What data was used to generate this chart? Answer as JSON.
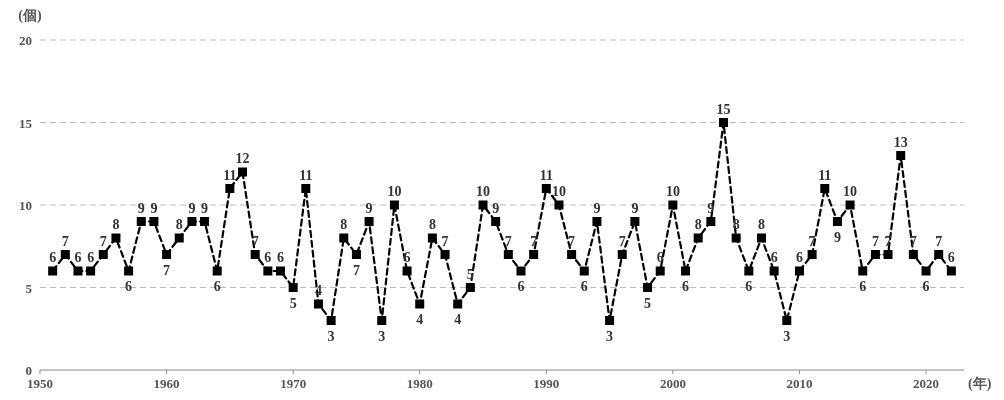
{
  "chart_data": {
    "type": "line",
    "xlabel": "(年)",
    "ylabel": "(個)",
    "x": [
      1951,
      1952,
      1953,
      1954,
      1955,
      1956,
      1957,
      1958,
      1959,
      1960,
      1961,
      1962,
      1963,
      1964,
      1965,
      1966,
      1967,
      1968,
      1969,
      1970,
      1971,
      1972,
      1973,
      1974,
      1975,
      1976,
      1977,
      1978,
      1979,
      1980,
      1981,
      1982,
      1983,
      1984,
      1985,
      1986,
      1987,
      1988,
      1989,
      1990,
      1991,
      1992,
      1993,
      1994,
      1995,
      1996,
      1997,
      1998,
      1999,
      2000,
      2001,
      2002,
      2003,
      2004,
      2005,
      2006,
      2007,
      2008,
      2009,
      2010,
      2011,
      2012,
      2013,
      2014,
      2015,
      2016,
      2017,
      2018,
      2019,
      2020,
      2021,
      2022
    ],
    "series": [
      {
        "color": "#000000",
        "values": [
          6,
          7,
          6,
          6,
          7,
          8,
          6,
          9,
          9,
          7,
          8,
          9,
          9,
          6,
          11,
          12,
          7,
          6,
          6,
          5,
          11,
          4,
          3,
          8,
          7,
          9,
          3,
          10,
          6,
          4,
          8,
          7,
          4,
          5,
          10,
          9,
          7,
          6,
          7,
          11,
          10,
          7,
          6,
          9,
          3,
          7,
          9,
          5,
          6,
          10,
          6,
          8,
          9,
          15,
          8,
          6,
          8,
          6,
          3,
          6,
          7,
          11,
          9,
          10,
          6,
          7,
          7,
          13,
          7,
          6,
          7,
          6
        ]
      }
    ],
    "xlim": [
      1950,
      2023
    ],
    "xticks": [
      1950,
      1960,
      1970,
      1980,
      1990,
      2000,
      2010,
      2020
    ],
    "ylim": [
      0,
      20
    ],
    "yticks": [
      0,
      5,
      10,
      15,
      20
    ],
    "grid": "y",
    "marker": "square",
    "line_style": "dashed",
    "data_labels": true
  }
}
